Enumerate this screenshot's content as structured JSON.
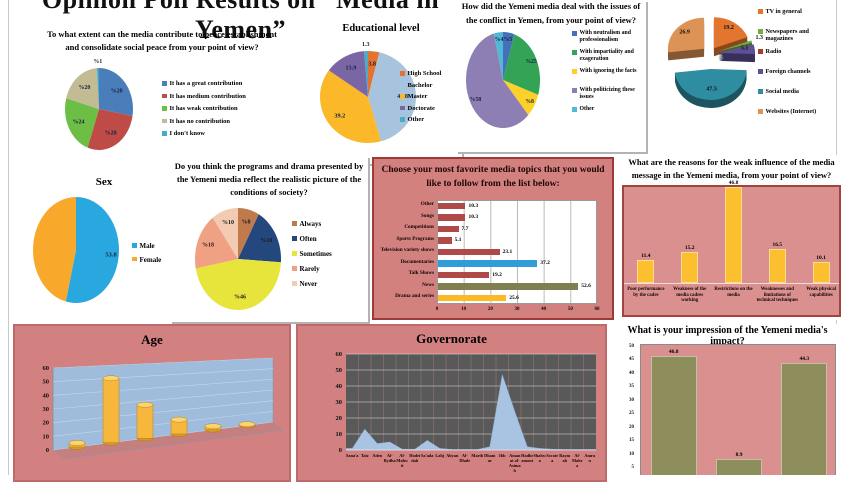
{
  "page_title": "Opinion Poll Results on “Media in Yemen”",
  "palette": {
    "panel_pink": "#d28080",
    "plot_pink": "#d9908f",
    "topics_border": "#9c3a38",
    "governorate_plot_bg": "#595959",
    "age_wall_blue": "#9fbcdc"
  },
  "chart_data": [
    {
      "type": "pie",
      "title": "To what extent can the media contribute to peace establishment and consolidate social peace from your point of view?",
      "legend": [
        "It has a great contribution",
        "It has medium contribution",
        "It has weak contribution",
        "It has no contribution",
        "I don't know"
      ],
      "values": [
        28,
        28,
        24,
        20,
        1
      ],
      "value_labels": [
        "%28",
        "%28",
        "%24",
        "%20",
        "%1"
      ],
      "colors": [
        "#4a7ebb",
        "#bf4b47",
        "#6dbe45",
        "#c2bb94",
        "#45a9c9"
      ]
    },
    {
      "type": "pie",
      "title": "Educational level",
      "legend": [
        "High School",
        "Bachelor",
        "Master",
        "Doctorate",
        "Other"
      ],
      "values": [
        3.8,
        41.8,
        39.2,
        13.9,
        1.3
      ],
      "value_labels": [
        "3.8",
        "41.8",
        "39.2",
        "13.9",
        "1.3"
      ],
      "colors": [
        "#e3732e",
        "#a8c3dd",
        "#fbb829",
        "#7b66a5",
        "#4bacc6"
      ]
    },
    {
      "type": "pie",
      "title": "How did the Yemeni media deal with the issues of the conflict in Yemen, from your point of view?",
      "legend": [
        "With neutralism and professionalism",
        "With impartiality and exageration",
        "With ignoring the facts",
        "With politicizing these issues",
        "Other"
      ],
      "values": [
        5,
        25,
        8,
        58,
        4
      ],
      "value_labels": [
        "%5",
        "%25",
        "%8",
        "%58",
        "%4"
      ],
      "colors": [
        "#4472b8",
        "#33a456",
        "#fdd02a",
        "#8d7eb3",
        "#52b8d8"
      ]
    },
    {
      "type": "pie",
      "title": "",
      "legend": [
        "TV in general",
        "Newspapers and magazines",
        "Radio",
        "Foreign channels",
        "Social media",
        "Websites (Internet)"
      ],
      "legend_colors": [
        "#e2762f",
        "#70ad47",
        "#a33e2e",
        "#5f4f96",
        "#2e8da0",
        "#dd9356"
      ],
      "values": [
        19.2,
        1.3,
        5.1,
        47.5,
        26.9
      ],
      "value_labels": [
        "19.2",
        "1.3",
        "5.1",
        "47.5",
        "26.9"
      ],
      "colors": [
        "#e2762f",
        "#70ad47",
        "#5f4f96",
        "#2e8da0",
        "#dd9356"
      ]
    },
    {
      "type": "pie",
      "title": "Sex",
      "legend": [
        "Male",
        "Female"
      ],
      "values": [
        53.8,
        46.2
      ],
      "value_labels": [
        "53.8",
        ""
      ],
      "colors": [
        "#29a8e0",
        "#f8a92b"
      ]
    },
    {
      "type": "pie",
      "title": "Do you think the programs and drama presented by the Yemeni media reflect the realistic picture of the conditions of society?",
      "legend": [
        "Always",
        "Often",
        "Sometimes",
        "Rarely",
        "Never"
      ],
      "values": [
        8,
        18,
        46,
        18,
        10
      ],
      "value_labels": [
        "%8",
        "%18",
        "%46",
        "%18",
        "%10"
      ],
      "colors": [
        "#c07a4b",
        "#24477e",
        "#e7e43b",
        "#f0a183",
        "#f3cab2"
      ]
    },
    {
      "type": "bar-horizontal",
      "title": "Choose your most favorite media topics that you would like to follow from the list below:",
      "categories": [
        "Other",
        "Songs",
        "Competitions",
        "Sports Programs",
        "Television variety shows",
        "Documentaries",
        "Talk Shows",
        "News",
        "Drama and series"
      ],
      "values": [
        10.3,
        10.3,
        7.7,
        5.1,
        23.1,
        37.2,
        19.2,
        52.6,
        25.6
      ],
      "bar_colors": [
        "#b04a48",
        "#b04a48",
        "#b04a48",
        "#b04a48",
        "#b04a48",
        "#2f9ed8",
        "#b04a48",
        "#7f7f4f",
        "#fcb825"
      ],
      "x_ticks": [
        "0",
        "10",
        "20",
        "30",
        "40",
        "50",
        "60"
      ],
      "xlim": [
        0,
        60
      ]
    },
    {
      "type": "bar",
      "title": "What are the reasons for the weak influence of the media message in the Yemeni media, from your point of view?",
      "categories": [
        "Poor performance by the cadre",
        "Weakness of the media cadres working",
        "Restrictions on the media",
        "Weaknesses and limitations of technical techniques",
        "Weak physical capabilities"
      ],
      "values": [
        11.4,
        15.2,
        46.8,
        16.5,
        10.1
      ],
      "value_labels": [
        "11.4",
        "15.2",
        "46.8",
        "16.5",
        "10.1"
      ],
      "bar_color": "#fcbf2f",
      "ylim": [
        0,
        50
      ]
    },
    {
      "type": "bar3d",
      "title": "Age",
      "categories": [
        "",
        "",
        "",
        "",
        "",
        ""
      ],
      "values": [
        3,
        50,
        27,
        12,
        3,
        1
      ],
      "y_ticks": [
        "0",
        "10",
        "20",
        "30",
        "40",
        "50",
        "60"
      ],
      "ylim": [
        0,
        60
      ],
      "bar_color": "#f6b73c"
    },
    {
      "type": "area",
      "title": "Governorate",
      "categories": [
        "Sana'a",
        "Taiz",
        "Aden",
        "Al-Bydha",
        "Al-Mahwit",
        "Hodeidah",
        "Sa'ada",
        "Lahj",
        "Abyan",
        "Al-Dhale",
        "Marib",
        "Dhamar",
        "Ibb",
        "Amanat al-Asimah",
        "Hadhramout",
        "Shabwa",
        "Socotra",
        "Raymah",
        "Al-Mahra",
        "Amran"
      ],
      "values": [
        1,
        13,
        4,
        5,
        0.5,
        0.5,
        6,
        1,
        0.3,
        0.3,
        0.3,
        2,
        47,
        24,
        2,
        1,
        0.5,
        0.3,
        0.3,
        0.3
      ],
      "y_ticks": [
        "0",
        "10",
        "20",
        "30",
        "40",
        "50",
        "60"
      ],
      "ylim": [
        0,
        60
      ],
      "area_color": "#a9c3e2"
    },
    {
      "type": "bar",
      "title": "What is your impression of the Yemeni media's impact?",
      "categories": [
        "",
        "",
        ""
      ],
      "values": [
        46.8,
        8.9,
        44.3
      ],
      "value_labels": [
        "46.8",
        "8.9",
        "44.3"
      ],
      "y_ticks": [
        "5",
        "10",
        "15",
        "20",
        "25",
        "30",
        "35",
        "40",
        "45",
        "50"
      ],
      "ylim": [
        0,
        50
      ],
      "bar_color": "#8e8e5c"
    }
  ]
}
